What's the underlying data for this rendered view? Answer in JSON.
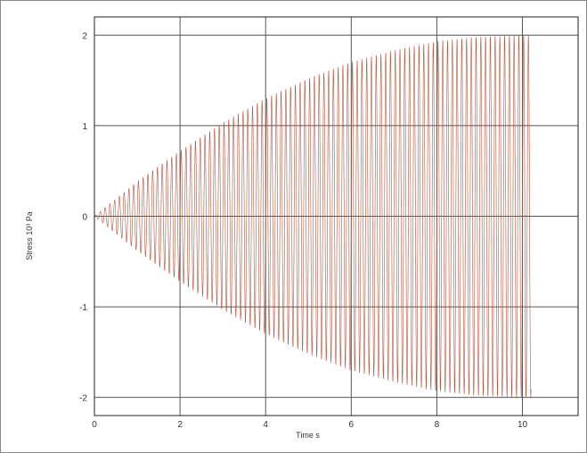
{
  "chart_data": {
    "type": "line",
    "title": "",
    "xlabel": "Time s",
    "ylabel": "Stress 10³ Pa",
    "xlim": [
      0,
      11.3
    ],
    "ylim": [
      -2.2,
      2.2
    ],
    "x_ticks": [
      0,
      2,
      4,
      6,
      8,
      10
    ],
    "y_ticks": [
      2,
      1,
      0,
      -1,
      -2
    ],
    "x_tick_labels": [
      "0",
      "2",
      "4",
      "6",
      "8",
      "10"
    ],
    "y_tick_labels": [
      "2",
      "1",
      "0",
      "-1",
      "-2"
    ],
    "grid": true,
    "legend": "none",
    "series": [
      {
        "color": "#b5533c",
        "signal": "oscillation",
        "frequency_hz": 9,
        "x_start": 0,
        "x_end": 10.2,
        "envelope_x": [
          0,
          1,
          2,
          3,
          4,
          5,
          6,
          7,
          8,
          9,
          10,
          10.2
        ],
        "envelope_amplitude": [
          0,
          0.38,
          0.72,
          1.03,
          1.3,
          1.52,
          1.7,
          1.83,
          1.93,
          1.98,
          2.0,
          2.0
        ]
      }
    ]
  }
}
